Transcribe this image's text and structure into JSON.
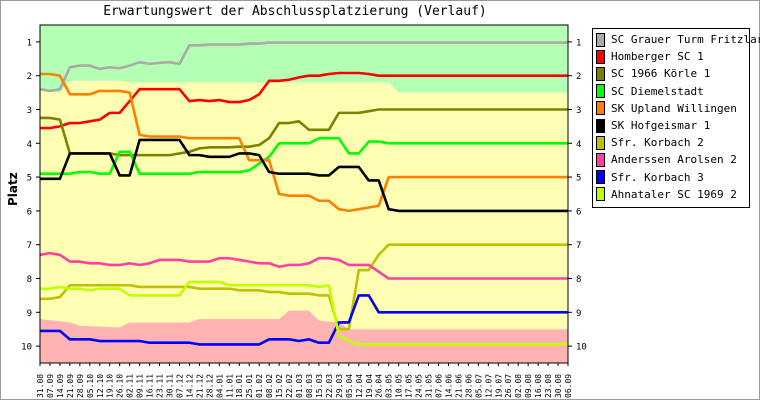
{
  "chart_data": {
    "type": "line",
    "title": "Erwartungswert der Abschlussplatzierung (Verlauf)",
    "ylabel": "Platz",
    "xlabel": "",
    "ylim": [
      10.5,
      0.5
    ],
    "y_ticks": [
      1,
      2,
      3,
      4,
      5,
      6,
      7,
      8,
      9,
      10
    ],
    "legend_position": "right",
    "x": [
      "31.08",
      "07.09",
      "14.09",
      "21.09",
      "28.09",
      "05.10",
      "12.10",
      "19.10",
      "26.10",
      "02.11",
      "09.11",
      "16.11",
      "23.11",
      "30.11",
      "07.12",
      "14.12",
      "21.12",
      "28.12",
      "04.01",
      "11.01",
      "18.01",
      "25.01",
      "01.02",
      "08.02",
      "15.02",
      "22.02",
      "01.03",
      "08.03",
      "15.03",
      "22.03",
      "29.03",
      "05.04",
      "12.04",
      "19.04",
      "26.04",
      "03.05",
      "10.05",
      "17.05",
      "24.05",
      "31.05",
      "07.06",
      "14.06",
      "21.06",
      "28.06",
      "05.07",
      "12.07",
      "19.07",
      "26.07",
      "02.08",
      "09.08",
      "16.08",
      "23.08",
      "30.08",
      "06.09"
    ],
    "bands": [
      {
        "from": 0.5,
        "to": 2.5,
        "color": "#b3ffb3",
        "upper_points": [
          [
            0,
            0.5
          ],
          [
            53,
            0.5
          ]
        ],
        "lower_points": [
          [
            0,
            2.4
          ],
          [
            2,
            2.5
          ],
          [
            3,
            2.15
          ],
          [
            8,
            2.15
          ],
          [
            9,
            2.2
          ],
          [
            35,
            2.2
          ],
          [
            36,
            2.5
          ],
          [
            52,
            2.5
          ],
          [
            53,
            2.5
          ]
        ]
      },
      {
        "color": "#ffb3b3",
        "upper_points": [
          [
            0,
            9.2
          ],
          [
            3,
            9.3
          ],
          [
            4,
            9.4
          ],
          [
            8,
            9.45
          ],
          [
            9,
            9.3
          ],
          [
            15,
            9.3
          ],
          [
            16,
            9.2
          ],
          [
            24,
            9.2
          ],
          [
            25,
            8.95
          ],
          [
            27,
            8.95
          ],
          [
            28,
            9.25
          ],
          [
            30,
            9.3
          ],
          [
            31,
            9.5
          ],
          [
            53,
            9.5
          ]
        ],
        "lower_points": [
          [
            0,
            10.5
          ],
          [
            53,
            10.5
          ]
        ]
      }
    ],
    "series": [
      {
        "name": "SC Grauer Turm Fritzlar",
        "color": "#aaaaaa",
        "values": [
          2.4,
          2.45,
          2.4,
          1.75,
          1.7,
          1.7,
          1.8,
          1.75,
          1.78,
          1.7,
          1.6,
          1.65,
          1.62,
          1.6,
          1.65,
          1.1,
          1.1,
          1.08,
          1.08,
          1.08,
          1.08,
          1.05,
          1.05,
          1.02,
          1.02,
          1.02,
          1.02,
          1.02,
          1.02,
          1.02,
          1.02,
          1.02,
          1.02,
          1.02,
          1.02,
          1.02,
          1.02,
          1.02,
          1.02,
          1.02,
          1.02,
          1.02,
          1.02,
          1.02,
          1.02,
          1.02,
          1.02,
          1.02,
          1.02,
          1.02,
          1.02,
          1.02,
          1.02,
          1.02
        ]
      },
      {
        "name": "Homberger SC 1",
        "color": "#ff0000",
        "values": [
          3.55,
          3.55,
          3.5,
          3.4,
          3.4,
          3.35,
          3.3,
          3.1,
          3.1,
          2.75,
          2.4,
          2.4,
          2.4,
          2.4,
          2.4,
          2.75,
          2.72,
          2.75,
          2.72,
          2.78,
          2.78,
          2.72,
          2.55,
          2.15,
          2.15,
          2.12,
          2.05,
          2.0,
          2.0,
          1.95,
          1.92,
          1.92,
          1.92,
          1.95,
          2.0,
          2.0,
          2.0,
          2.0,
          2.0,
          2.0,
          2.0,
          2.0,
          2.0,
          2.0,
          2.0,
          2.0,
          2.0,
          2.0,
          2.0,
          2.0,
          2.0,
          2.0,
          2.0,
          2.0
        ]
      },
      {
        "name": "SC 1966 Körle 1",
        "color": "#808000",
        "values": [
          3.25,
          3.25,
          3.3,
          4.3,
          4.3,
          4.3,
          4.3,
          4.3,
          4.35,
          4.35,
          4.35,
          4.35,
          4.35,
          4.35,
          4.3,
          4.25,
          4.15,
          4.12,
          4.12,
          4.12,
          4.1,
          4.1,
          4.05,
          3.85,
          3.4,
          3.4,
          3.35,
          3.6,
          3.6,
          3.6,
          3.1,
          3.1,
          3.1,
          3.05,
          3.0,
          3.0,
          3.0,
          3.0,
          3.0,
          3.0,
          3.0,
          3.0,
          3.0,
          3.0,
          3.0,
          3.0,
          3.0,
          3.0,
          3.0,
          3.0,
          3.0,
          3.0,
          3.0,
          3.0
        ]
      },
      {
        "name": "SC Diemelstadt",
        "color": "#00ff00",
        "values": [
          4.9,
          4.9,
          4.9,
          4.9,
          4.85,
          4.85,
          4.9,
          4.9,
          4.25,
          4.25,
          4.9,
          4.9,
          4.9,
          4.9,
          4.9,
          4.9,
          4.85,
          4.85,
          4.85,
          4.85,
          4.85,
          4.8,
          4.6,
          4.4,
          4.0,
          4.0,
          4.0,
          4.0,
          3.85,
          3.85,
          3.85,
          4.3,
          4.3,
          3.95,
          3.95,
          4.0,
          4.0,
          4.0,
          4.0,
          4.0,
          4.0,
          4.0,
          4.0,
          4.0,
          4.0,
          4.0,
          4.0,
          4.0,
          4.0,
          4.0,
          4.0,
          4.0,
          4.0,
          4.0
        ]
      },
      {
        "name": "SK Upland Willingen",
        "color": "#ff8000",
        "values": [
          1.95,
          1.95,
          2.0,
          2.55,
          2.55,
          2.55,
          2.45,
          2.45,
          2.45,
          2.5,
          3.75,
          3.8,
          3.8,
          3.8,
          3.8,
          3.85,
          3.85,
          3.85,
          3.85,
          3.85,
          3.85,
          4.5,
          4.5,
          4.5,
          5.5,
          5.55,
          5.55,
          5.55,
          5.7,
          5.7,
          5.95,
          6.0,
          5.95,
          5.9,
          5.85,
          5.0,
          5.0,
          5.0,
          5.0,
          5.0,
          5.0,
          5.0,
          5.0,
          5.0,
          5.0,
          5.0,
          5.0,
          5.0,
          5.0,
          5.0,
          5.0,
          5.0,
          5.0,
          5.0
        ]
      },
      {
        "name": "SK Hofgeismar 1",
        "color": "#000000",
        "values": [
          5.05,
          5.05,
          5.05,
          4.3,
          4.3,
          4.3,
          4.3,
          4.3,
          4.95,
          4.95,
          3.9,
          3.9,
          3.9,
          3.9,
          3.9,
          4.35,
          4.35,
          4.4,
          4.4,
          4.4,
          4.3,
          4.3,
          4.35,
          4.85,
          4.9,
          4.9,
          4.9,
          4.9,
          4.95,
          4.95,
          4.7,
          4.7,
          4.7,
          5.1,
          5.1,
          5.95,
          6.0,
          6.0,
          6.0,
          6.0,
          6.0,
          6.0,
          6.0,
          6.0,
          6.0,
          6.0,
          6.0,
          6.0,
          6.0,
          6.0,
          6.0,
          6.0,
          6.0,
          6.0
        ]
      },
      {
        "name": "Sfr. Korbach 2",
        "color": "#c0c000",
        "values": [
          8.6,
          8.6,
          8.55,
          8.2,
          8.2,
          8.2,
          8.2,
          8.2,
          8.2,
          8.2,
          8.25,
          8.25,
          8.25,
          8.25,
          8.25,
          8.25,
          8.3,
          8.3,
          8.3,
          8.3,
          8.35,
          8.35,
          8.35,
          8.4,
          8.4,
          8.45,
          8.45,
          8.45,
          8.5,
          8.5,
          9.5,
          9.5,
          7.75,
          7.75,
          7.3,
          7.0,
          7.0,
          7.0,
          7.0,
          7.0,
          7.0,
          7.0,
          7.0,
          7.0,
          7.0,
          7.0,
          7.0,
          7.0,
          7.0,
          7.0,
          7.0,
          7.0,
          7.0,
          7.0
        ]
      },
      {
        "name": "Anderssen Arolsen 2",
        "color": "#ff40a0",
        "values": [
          7.3,
          7.25,
          7.3,
          7.5,
          7.5,
          7.55,
          7.55,
          7.6,
          7.6,
          7.55,
          7.6,
          7.55,
          7.45,
          7.45,
          7.45,
          7.5,
          7.5,
          7.5,
          7.4,
          7.4,
          7.45,
          7.5,
          7.55,
          7.55,
          7.65,
          7.6,
          7.6,
          7.55,
          7.4,
          7.4,
          7.45,
          7.6,
          7.6,
          7.6,
          7.8,
          8.0,
          8.0,
          8.0,
          8.0,
          8.0,
          8.0,
          8.0,
          8.0,
          8.0,
          8.0,
          8.0,
          8.0,
          8.0,
          8.0,
          8.0,
          8.0,
          8.0,
          8.0,
          8.0
        ]
      },
      {
        "name": "Sfr. Korbach 3",
        "color": "#0000ff",
        "values": [
          9.55,
          9.55,
          9.55,
          9.8,
          9.8,
          9.8,
          9.85,
          9.85,
          9.85,
          9.85,
          9.85,
          9.9,
          9.9,
          9.9,
          9.9,
          9.9,
          9.95,
          9.95,
          9.95,
          9.95,
          9.95,
          9.95,
          9.95,
          9.8,
          9.8,
          9.8,
          9.85,
          9.8,
          9.9,
          9.9,
          9.3,
          9.3,
          8.5,
          8.5,
          9.0,
          9.0,
          9.0,
          9.0,
          9.0,
          9.0,
          9.0,
          9.0,
          9.0,
          9.0,
          9.0,
          9.0,
          9.0,
          9.0,
          9.0,
          9.0,
          9.0,
          9.0,
          9.0,
          9.0
        ]
      },
      {
        "name": "Ahnataler SC 1969 2",
        "color": "#c0ff00",
        "values": [
          8.3,
          8.3,
          8.25,
          8.3,
          8.3,
          8.35,
          8.3,
          8.3,
          8.3,
          8.5,
          8.5,
          8.5,
          8.5,
          8.5,
          8.5,
          8.1,
          8.1,
          8.1,
          8.1,
          8.2,
          8.2,
          8.2,
          8.2,
          8.2,
          8.2,
          8.2,
          8.2,
          8.2,
          8.25,
          8.2,
          9.7,
          9.85,
          9.95,
          9.95,
          9.95,
          9.95,
          9.95,
          9.95,
          9.95,
          9.95,
          9.95,
          9.95,
          9.95,
          9.95,
          9.95,
          9.95,
          9.95,
          9.95,
          9.95,
          9.95,
          9.95,
          9.95,
          9.95,
          9.95
        ]
      }
    ]
  }
}
